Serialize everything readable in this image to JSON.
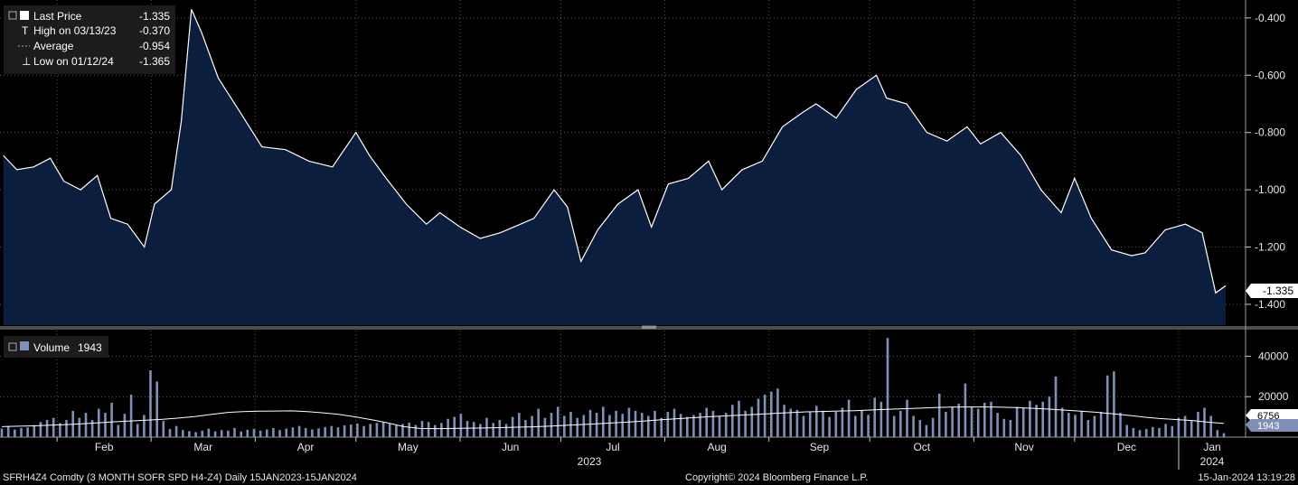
{
  "chart_data": [
    {
      "type": "area",
      "name": "price-panel",
      "legend": [
        {
          "label": "Last Price",
          "value": "-1.335"
        },
        {
          "label": "High on 03/13/23",
          "value": "-0.370"
        },
        {
          "label": "Average",
          "value": "-0.954"
        },
        {
          "label": "Low on 01/12/24",
          "value": "-1.365"
        }
      ],
      "last_value_tag": "-1.335",
      "ylim": [
        -1.46,
        -0.35
      ],
      "yticks": [
        -0.4,
        -0.6,
        -0.8,
        -1.0,
        -1.2,
        -1.4
      ],
      "ytick_labels": [
        "-0.400",
        "-0.600",
        "-0.800",
        "-1.000",
        "-1.200",
        "-1.400"
      ],
      "x": [
        "2023-01-16",
        "2023-01-20",
        "2023-01-25",
        "2023-01-30",
        "2023-02-03",
        "2023-02-08",
        "2023-02-13",
        "2023-02-17",
        "2023-02-22",
        "2023-02-27",
        "2023-03-02",
        "2023-03-07",
        "2023-03-10",
        "2023-03-13",
        "2023-03-16",
        "2023-03-21",
        "2023-03-27",
        "2023-04-03",
        "2023-04-10",
        "2023-04-17",
        "2023-04-24",
        "2023-05-01",
        "2023-05-05",
        "2023-05-10",
        "2023-05-16",
        "2023-05-22",
        "2023-05-26",
        "2023-06-01",
        "2023-06-07",
        "2023-06-13",
        "2023-06-19",
        "2023-06-23",
        "2023-06-29",
        "2023-07-03",
        "2023-07-07",
        "2023-07-12",
        "2023-07-18",
        "2023-07-24",
        "2023-07-28",
        "2023-08-02",
        "2023-08-08",
        "2023-08-14",
        "2023-08-18",
        "2023-08-24",
        "2023-08-30",
        "2023-09-05",
        "2023-09-11",
        "2023-09-15",
        "2023-09-21",
        "2023-09-27",
        "2023-10-03",
        "2023-10-06",
        "2023-10-12",
        "2023-10-18",
        "2023-10-24",
        "2023-10-30",
        "2023-11-03",
        "2023-11-09",
        "2023-11-15",
        "2023-11-21",
        "2023-11-27",
        "2023-12-01",
        "2023-12-06",
        "2023-12-12",
        "2023-12-18",
        "2023-12-22",
        "2023-12-28",
        "2024-01-03",
        "2024-01-08",
        "2024-01-12",
        "2024-01-15"
      ],
      "values": [
        -0.88,
        -0.93,
        -0.92,
        -0.89,
        -0.97,
        -1.0,
        -0.95,
        -1.1,
        -1.12,
        -1.2,
        -1.05,
        -1.0,
        -0.76,
        -0.37,
        -0.45,
        -0.61,
        -0.72,
        -0.85,
        -0.86,
        -0.9,
        -0.92,
        -0.8,
        -0.88,
        -0.96,
        -1.05,
        -1.12,
        -1.08,
        -1.13,
        -1.17,
        -1.15,
        -1.12,
        -1.1,
        -1.0,
        -1.06,
        -1.25,
        -1.14,
        -1.05,
        -1.0,
        -1.13,
        -0.98,
        -0.96,
        -0.9,
        -1.0,
        -0.93,
        -0.9,
        -0.78,
        -0.73,
        -0.7,
        -0.75,
        -0.65,
        -0.6,
        -0.68,
        -0.7,
        -0.8,
        -0.83,
        -0.78,
        -0.84,
        -0.8,
        -0.88,
        -1.0,
        -1.08,
        -0.96,
        -1.1,
        -1.21,
        -1.23,
        -1.22,
        -1.14,
        -1.12,
        -1.15,
        -1.36,
        -1.335
      ]
    },
    {
      "type": "bar",
      "name": "volume-panel",
      "legend": [
        {
          "label": "Volume",
          "value": "1943"
        }
      ],
      "last_value_tags": [
        "6756",
        "1943"
      ],
      "ylim": [
        0,
        50000
      ],
      "yticks": [
        20000,
        40000
      ],
      "ytick_labels": [
        "20000",
        "40000"
      ],
      "volume_values": [
        4200,
        5500,
        3800,
        4500,
        4800,
        6000,
        7500,
        8500,
        9500,
        7000,
        8500,
        13000,
        9500,
        12000,
        8500,
        14000,
        12000,
        17000,
        6000,
        11500,
        21000,
        6500,
        11000,
        33000,
        27500,
        8000,
        4000,
        5500,
        3500,
        3000,
        2500,
        3200,
        4200,
        2800,
        3500,
        3200,
        4500,
        2800,
        3600,
        4000,
        3200,
        3800,
        4500,
        3500,
        4200,
        4800,
        5500,
        4500,
        3800,
        4300,
        5000,
        5500,
        4800,
        5800,
        6200,
        6800,
        5500,
        6500,
        7000,
        7500,
        6500,
        5800,
        6500,
        7200,
        6000,
        8000,
        7500,
        6000,
        7000,
        9000,
        10000,
        11500,
        8000,
        7500,
        6500,
        9500,
        7000,
        8500,
        6500,
        10000,
        12000,
        8500,
        10500,
        14000,
        9500,
        12000,
        15000,
        10500,
        12500,
        9500,
        11000,
        13500,
        12000,
        15000,
        11000,
        13000,
        11500,
        14500,
        13000,
        12000,
        10500,
        13000,
        9500,
        12500,
        14000,
        11500,
        10000,
        11000,
        12000,
        14500,
        13000,
        10500,
        12000,
        16000,
        18000,
        13000,
        15000,
        19000,
        21000,
        22500,
        24000,
        16000,
        14000,
        13500,
        10500,
        12500,
        15500,
        13000,
        10000,
        12500,
        14500,
        18500,
        10500,
        13000,
        11000,
        19500,
        17500,
        49000,
        10500,
        13000,
        18500,
        10500,
        8500,
        6000,
        9500,
        21500,
        12500,
        15000,
        16500,
        26500,
        15000,
        14000,
        17000,
        17500,
        12000,
        9000,
        8500,
        15000,
        14500,
        18000,
        16000,
        17500,
        20000,
        30000,
        14500,
        12000,
        11000,
        13000,
        8500,
        10500,
        12500,
        30500,
        32500,
        12000,
        6000,
        4500,
        3500,
        4000,
        5000,
        4500,
        6500,
        5500,
        9500,
        10500,
        8500,
        12500,
        14500,
        10500,
        3500,
        1943
      ]
    },
    {
      "type": "line",
      "name": "volume-moving-average",
      "values": [
        5200,
        5400,
        5600,
        5900,
        6200,
        6600,
        7100,
        7600,
        8000,
        8400,
        8800,
        9400,
        10200,
        11200,
        12200,
        12600,
        12800,
        12900,
        13000,
        12600,
        12000,
        11200,
        10000,
        8600,
        7000,
        5200,
        4300,
        4200,
        4300,
        4400,
        4500,
        4700,
        4900,
        5100,
        5400,
        5800,
        6200,
        6600,
        7000,
        7500,
        8000,
        8600,
        9100,
        9600,
        10100,
        10500,
        10900,
        11300,
        11700,
        12100,
        12500,
        12700,
        12900,
        13100,
        13400,
        13700,
        14000,
        14300,
        14600,
        14800,
        14900,
        14900,
        14800,
        14600,
        14300,
        13900,
        13400,
        12900,
        12300,
        11600,
        10800,
        9900,
        9200,
        8700,
        8200,
        7400,
        6756
      ]
    },
    {
      "type": "axis",
      "x_tick_labels": [
        "Feb",
        "Mar",
        "Apr",
        "May",
        "Jun",
        "Jul",
        "Aug",
        "Sep",
        "Oct",
        "Nov",
        "Dec",
        "Jan"
      ],
      "year_labels": [
        "2023",
        "2024"
      ]
    }
  ],
  "footer": {
    "ticker": "SFRH4Z4 Comdty (3 MONTH SOFR SPD  H4-Z4)  Daily 15JAN2023-15JAN2024",
    "copyright": "Copyright© 2024 Bloomberg Finance L.P.",
    "timestamp": "15-Jan-2024 13:19:28"
  },
  "colors": {
    "background": "#000000",
    "area_fill": "#0b1e3d",
    "line": "#ffffff",
    "volume_bar": "#7f8fb8",
    "grid": "#5a5a5a",
    "legend_bg": "#1c1c1c"
  }
}
